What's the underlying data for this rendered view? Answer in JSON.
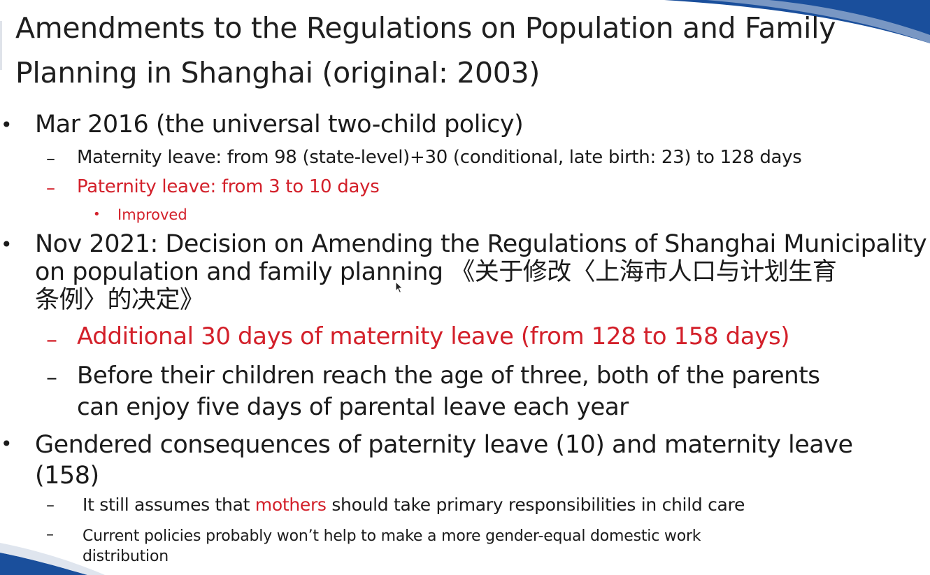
{
  "slide": {
    "title_line1": "Amendments to the Regulations on Population and Family",
    "title_line2": "Planning in Shanghai (original: 2003)",
    "bullet_mark": "•",
    "dash_mark": "–",
    "sections": {
      "mar2016": {
        "heading": "Mar 2016 (the universal two-child policy)",
        "maternity": "Maternity leave: from 98 (state-level)+30 (conditional, late birth: 23) to 128 days",
        "paternity": "Paternity leave: from 3 to 10 days",
        "improved": "Improved"
      },
      "nov2021": {
        "heading_line1": "Nov 2021: Decision on Amending the Regulations of Shanghai Municipality",
        "heading_line2": "on population and family planning 《关于修改〈上海市人口与计划生育",
        "heading_line3": "条例〉的决定》",
        "additional": "Additional 30 days of maternity leave (from 128 to 158 days)",
        "parental_line1": "Before their children reach the age of three, both of the parents",
        "parental_line2": "can enjoy five days of parental leave each year"
      },
      "gendered": {
        "heading_line1": "Gendered consequences of paternity leave (10) and maternity leave",
        "heading_line2": "(158)",
        "assumes_pre": "It still assumes that ",
        "assumes_highlight": "mothers",
        "assumes_post": " should take primary responsibilities in child care",
        "current_line1": "Current policies probably won’t help to make a more gender-equal domestic work",
        "current_line2": "distribution"
      }
    }
  },
  "colors": {
    "accent_red": "#d3202a",
    "swoosh_blue": "#1a4f9c",
    "text": "#1b1b1b"
  }
}
